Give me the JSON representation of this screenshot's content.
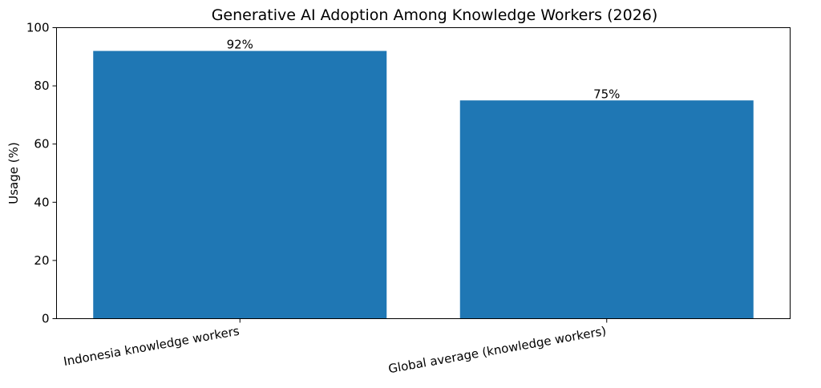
{
  "chart_data": {
    "type": "bar",
    "title": "Generative AI Adoption Among Knowledge Workers (2026)",
    "xlabel": "",
    "ylabel": "Usage (%)",
    "categories": [
      "Indonesia knowledge workers",
      "Global average (knowledge workers)"
    ],
    "values": [
      92,
      75
    ],
    "data_labels": [
      "92%",
      "75%"
    ],
    "ylim": [
      0,
      100
    ],
    "yticks": [
      0,
      20,
      40,
      60,
      80,
      100
    ],
    "ytick_labels": [
      "0",
      "20",
      "40",
      "60",
      "80",
      "100"
    ],
    "bar_color": "#1f77b4",
    "grid": false,
    "legend": "none"
  }
}
